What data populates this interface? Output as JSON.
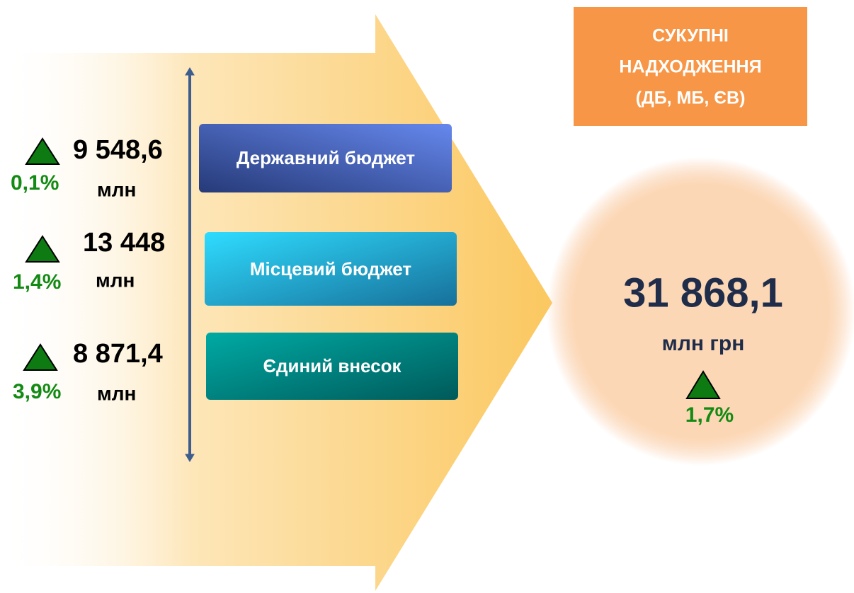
{
  "header": {
    "lines": [
      "СУКУПНІ",
      "НАДХОДЖЕННЯ",
      "(ДБ, МБ, ЄВ)"
    ]
  },
  "items": [
    {
      "value": "9 548,6",
      "unit": "млн",
      "change": "0,1%",
      "label": "Державний бюджет"
    },
    {
      "value": "13 448",
      "unit": "млн",
      "change": "1,4%",
      "label": "Місцевий бюджет"
    },
    {
      "value": "8 871,4",
      "unit": "млн",
      "change": "3,9%",
      "label": "Єдиний внесок"
    }
  ],
  "total": {
    "value": "31 868,1",
    "unit": "млн грн",
    "change": "1,7%"
  }
}
